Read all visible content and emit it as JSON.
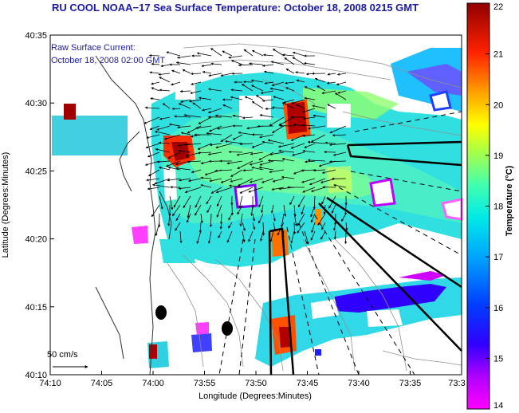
{
  "header": {
    "title": "RU COOL  NOAA−17  Sea Surface Temperature:  October 18, 2008 0215 GMT",
    "overlay_line1": "Raw Surface Current:",
    "overlay_line2": "October 18, 2008 02:00 GMT"
  },
  "map": {
    "xlabel": "Longitude (Degrees:Minutes)",
    "ylabel": "Latitude (Degrees:Minutes)",
    "x_ticks": [
      "74:10",
      "74:05",
      "74:00",
      "73:55",
      "73:50",
      "73:45",
      "73:40",
      "73:35",
      "73:3"
    ],
    "y_ticks": [
      "40:35",
      "40:30",
      "40:25",
      "40:20",
      "40:15",
      "40:10"
    ],
    "scale_label": "50 cm/s"
  },
  "colorbar": {
    "label": "Temperature (°C)",
    "ticks": [
      "22",
      "21",
      "20",
      "19",
      "18",
      "17",
      "16",
      "15",
      "14"
    ],
    "range": [
      14,
      22
    ],
    "colors": [
      "#ff00ff",
      "#6a00ff",
      "#0000ff",
      "#0080ff",
      "#00e0ff",
      "#40ffc0",
      "#a0ff60",
      "#ffff00",
      "#ff9000",
      "#ff2000",
      "#a00000"
    ]
  }
}
